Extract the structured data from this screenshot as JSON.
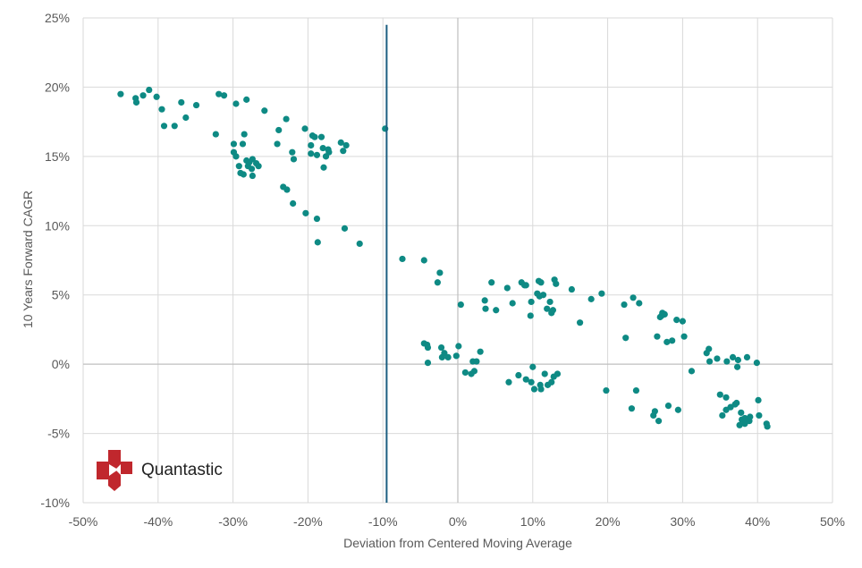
{
  "colors": {
    "point": "#0e8a84",
    "marker_line": "#1b5e80",
    "grid": "#d9d9d9",
    "zero_axis": "#bfbfbf",
    "logo_red": "#c0272d"
  },
  "logo": {
    "text": "Quantastic",
    "icon": "quantastic-logo-icon"
  },
  "chart_data": {
    "type": "scatter",
    "title": "",
    "xlabel": "Deviation from Centered Moving Average",
    "ylabel": "10 Years Forward CAGR",
    "xlim": [
      -50,
      50
    ],
    "ylim": [
      -10,
      25
    ],
    "x_ticks": [
      -50,
      -40,
      -30,
      -20,
      -10,
      0,
      10,
      20,
      30,
      40,
      50
    ],
    "y_ticks": [
      -10,
      -5,
      0,
      5,
      10,
      15,
      20,
      25
    ],
    "x_tick_labels": [
      "-50%",
      "-40%",
      "-30%",
      "-20%",
      "-10%",
      "0%",
      "10%",
      "20%",
      "30%",
      "40%",
      "50%"
    ],
    "y_tick_labels": [
      "-10%",
      "-5%",
      "0%",
      "5%",
      "10%",
      "15%",
      "20%",
      "25%"
    ],
    "grid": true,
    "vertical_marker": {
      "x": -9.5,
      "y_from": -10,
      "y_to": 24.5
    },
    "series": [
      {
        "name": "Observations",
        "points": [
          [
            -45,
            19.5
          ],
          [
            -43,
            19.2
          ],
          [
            -42.9,
            18.9
          ],
          [
            -42,
            19.4
          ],
          [
            -41.2,
            19.8
          ],
          [
            -40.2,
            19.3
          ],
          [
            -39.5,
            18.4
          ],
          [
            -39.2,
            17.2
          ],
          [
            -37.8,
            17.2
          ],
          [
            -36.9,
            18.9
          ],
          [
            -36.3,
            17.8
          ],
          [
            -34.9,
            18.7
          ],
          [
            -32.3,
            16.6
          ],
          [
            -31.9,
            19.5
          ],
          [
            -31.2,
            19.4
          ],
          [
            -29.9,
            15.9
          ],
          [
            -29.9,
            15.3
          ],
          [
            -29.6,
            18.8
          ],
          [
            -29.6,
            15.0
          ],
          [
            -29.2,
            14.3
          ],
          [
            -29.0,
            13.8
          ],
          [
            -28.7,
            15.9
          ],
          [
            -28.6,
            13.7
          ],
          [
            -28.5,
            16.6
          ],
          [
            -28.2,
            19.1
          ],
          [
            -28.2,
            14.7
          ],
          [
            -28.0,
            14.3
          ],
          [
            -27.8,
            14.6
          ],
          [
            -27.5,
            14.1
          ],
          [
            -27.4,
            14.8
          ],
          [
            -27.4,
            13.6
          ],
          [
            -26.9,
            14.5
          ],
          [
            -26.6,
            14.3
          ],
          [
            -25.8,
            18.3
          ],
          [
            -24.1,
            15.9
          ],
          [
            -23.9,
            16.9
          ],
          [
            -23.3,
            12.8
          ],
          [
            -22.9,
            17.7
          ],
          [
            -22.8,
            12.6
          ],
          [
            -22.1,
            15.3
          ],
          [
            -22.0,
            11.6
          ],
          [
            -21.9,
            14.8
          ],
          [
            -20.3,
            10.9
          ],
          [
            -20.4,
            17.0
          ],
          [
            -19.6,
            15.2
          ],
          [
            -19.6,
            15.8
          ],
          [
            -19.4,
            16.5
          ],
          [
            -19.1,
            16.4
          ],
          [
            -18.8,
            15.1
          ],
          [
            -18.8,
            10.5
          ],
          [
            -18.7,
            8.8
          ],
          [
            -18.2,
            16.4
          ],
          [
            -18.0,
            15.6
          ],
          [
            -17.9,
            14.2
          ],
          [
            -17.6,
            15.0
          ],
          [
            -17.3,
            15.5
          ],
          [
            -17.2,
            15.3
          ],
          [
            -15.6,
            16.0
          ],
          [
            -15.3,
            15.4
          ],
          [
            -15.1,
            9.8
          ],
          [
            -14.9,
            15.8
          ],
          [
            -13.1,
            8.7
          ],
          [
            -9.7,
            17.0
          ],
          [
            -7.4,
            7.6
          ],
          [
            -4.5,
            7.5
          ],
          [
            -2.7,
            5.9
          ],
          [
            -2.4,
            6.6
          ],
          [
            -4.5,
            1.5
          ],
          [
            -4.1,
            1.4
          ],
          [
            -4.0,
            1.2
          ],
          [
            -4.0,
            0.1
          ],
          [
            -2.2,
            1.2
          ],
          [
            -2.1,
            0.5
          ],
          [
            -1.8,
            0.8
          ],
          [
            -1.3,
            0.5
          ],
          [
            -0.2,
            0.6
          ],
          [
            0.1,
            1.3
          ],
          [
            0.4,
            4.3
          ],
          [
            1.0,
            -0.6
          ],
          [
            1.8,
            -0.7
          ],
          [
            2.2,
            -0.5
          ],
          [
            2.0,
            0.2
          ],
          [
            2.5,
            0.2
          ],
          [
            3.0,
            0.9
          ],
          [
            3.6,
            4.6
          ],
          [
            3.7,
            4.0
          ],
          [
            4.5,
            5.9
          ],
          [
            5.1,
            3.9
          ],
          [
            6.6,
            5.5
          ],
          [
            6.8,
            -1.3
          ],
          [
            7.3,
            4.4
          ],
          [
            8.1,
            -0.8
          ],
          [
            8.5,
            5.9
          ],
          [
            8.9,
            5.7
          ],
          [
            9.1,
            -1.1
          ],
          [
            9.1,
            5.7
          ],
          [
            9.7,
            3.5
          ],
          [
            9.8,
            -1.3
          ],
          [
            9.8,
            4.5
          ],
          [
            10.0,
            -0.2
          ],
          [
            10.2,
            -1.8
          ],
          [
            10.6,
            5.1
          ],
          [
            10.8,
            6.0
          ],
          [
            10.9,
            4.9
          ],
          [
            11.0,
            -1.5
          ],
          [
            11.1,
            5.9
          ],
          [
            11.1,
            -1.8
          ],
          [
            11.4,
            5.0
          ],
          [
            11.6,
            -0.7
          ],
          [
            11.9,
            4.0
          ],
          [
            12.0,
            -1.5
          ],
          [
            12.3,
            4.5
          ],
          [
            12.5,
            -1.3
          ],
          [
            12.5,
            3.7
          ],
          [
            12.7,
            3.9
          ],
          [
            12.8,
            -0.9
          ],
          [
            12.9,
            6.1
          ],
          [
            13.1,
            5.8
          ],
          [
            13.3,
            -0.7
          ],
          [
            15.2,
            5.4
          ],
          [
            16.3,
            3.0
          ],
          [
            17.8,
            4.7
          ],
          [
            19.2,
            5.1
          ],
          [
            19.8,
            -1.9
          ],
          [
            22.2,
            4.3
          ],
          [
            22.4,
            1.9
          ],
          [
            23.2,
            -3.2
          ],
          [
            23.4,
            4.8
          ],
          [
            23.8,
            -1.9
          ],
          [
            24.2,
            4.4
          ],
          [
            26.1,
            -3.7
          ],
          [
            26.3,
            -3.4
          ],
          [
            26.6,
            2.0
          ],
          [
            26.8,
            -4.1
          ],
          [
            27.0,
            3.4
          ],
          [
            27.2,
            3.5
          ],
          [
            27.3,
            3.7
          ],
          [
            27.6,
            3.6
          ],
          [
            27.9,
            1.6
          ],
          [
            28.1,
            -3.0
          ],
          [
            28.6,
            1.7
          ],
          [
            29.2,
            3.2
          ],
          [
            29.4,
            -3.3
          ],
          [
            30.0,
            3.1
          ],
          [
            30.2,
            2.0
          ],
          [
            31.2,
            -0.5
          ],
          [
            33.2,
            0.8
          ],
          [
            33.5,
            1.1
          ],
          [
            33.6,
            0.2
          ],
          [
            34.6,
            0.4
          ],
          [
            35.0,
            -2.2
          ],
          [
            35.3,
            -3.7
          ],
          [
            35.8,
            -2.4
          ],
          [
            35.8,
            -3.3
          ],
          [
            35.9,
            0.2
          ],
          [
            36.4,
            -3.1
          ],
          [
            36.7,
            0.5
          ],
          [
            37.0,
            -2.9
          ],
          [
            37.2,
            -2.8
          ],
          [
            37.3,
            -0.2
          ],
          [
            37.4,
            0.3
          ],
          [
            37.6,
            -4.4
          ],
          [
            37.8,
            -3.5
          ],
          [
            37.9,
            -4.0
          ],
          [
            38.3,
            -3.9
          ],
          [
            38.3,
            -4.3
          ],
          [
            38.6,
            0.5
          ],
          [
            38.9,
            -4.1
          ],
          [
            39.0,
            -3.8
          ],
          [
            39.9,
            0.1
          ],
          [
            40.1,
            -2.6
          ],
          [
            40.2,
            -3.7
          ],
          [
            41.2,
            -4.3
          ],
          [
            41.3,
            -4.5
          ]
        ]
      }
    ]
  }
}
